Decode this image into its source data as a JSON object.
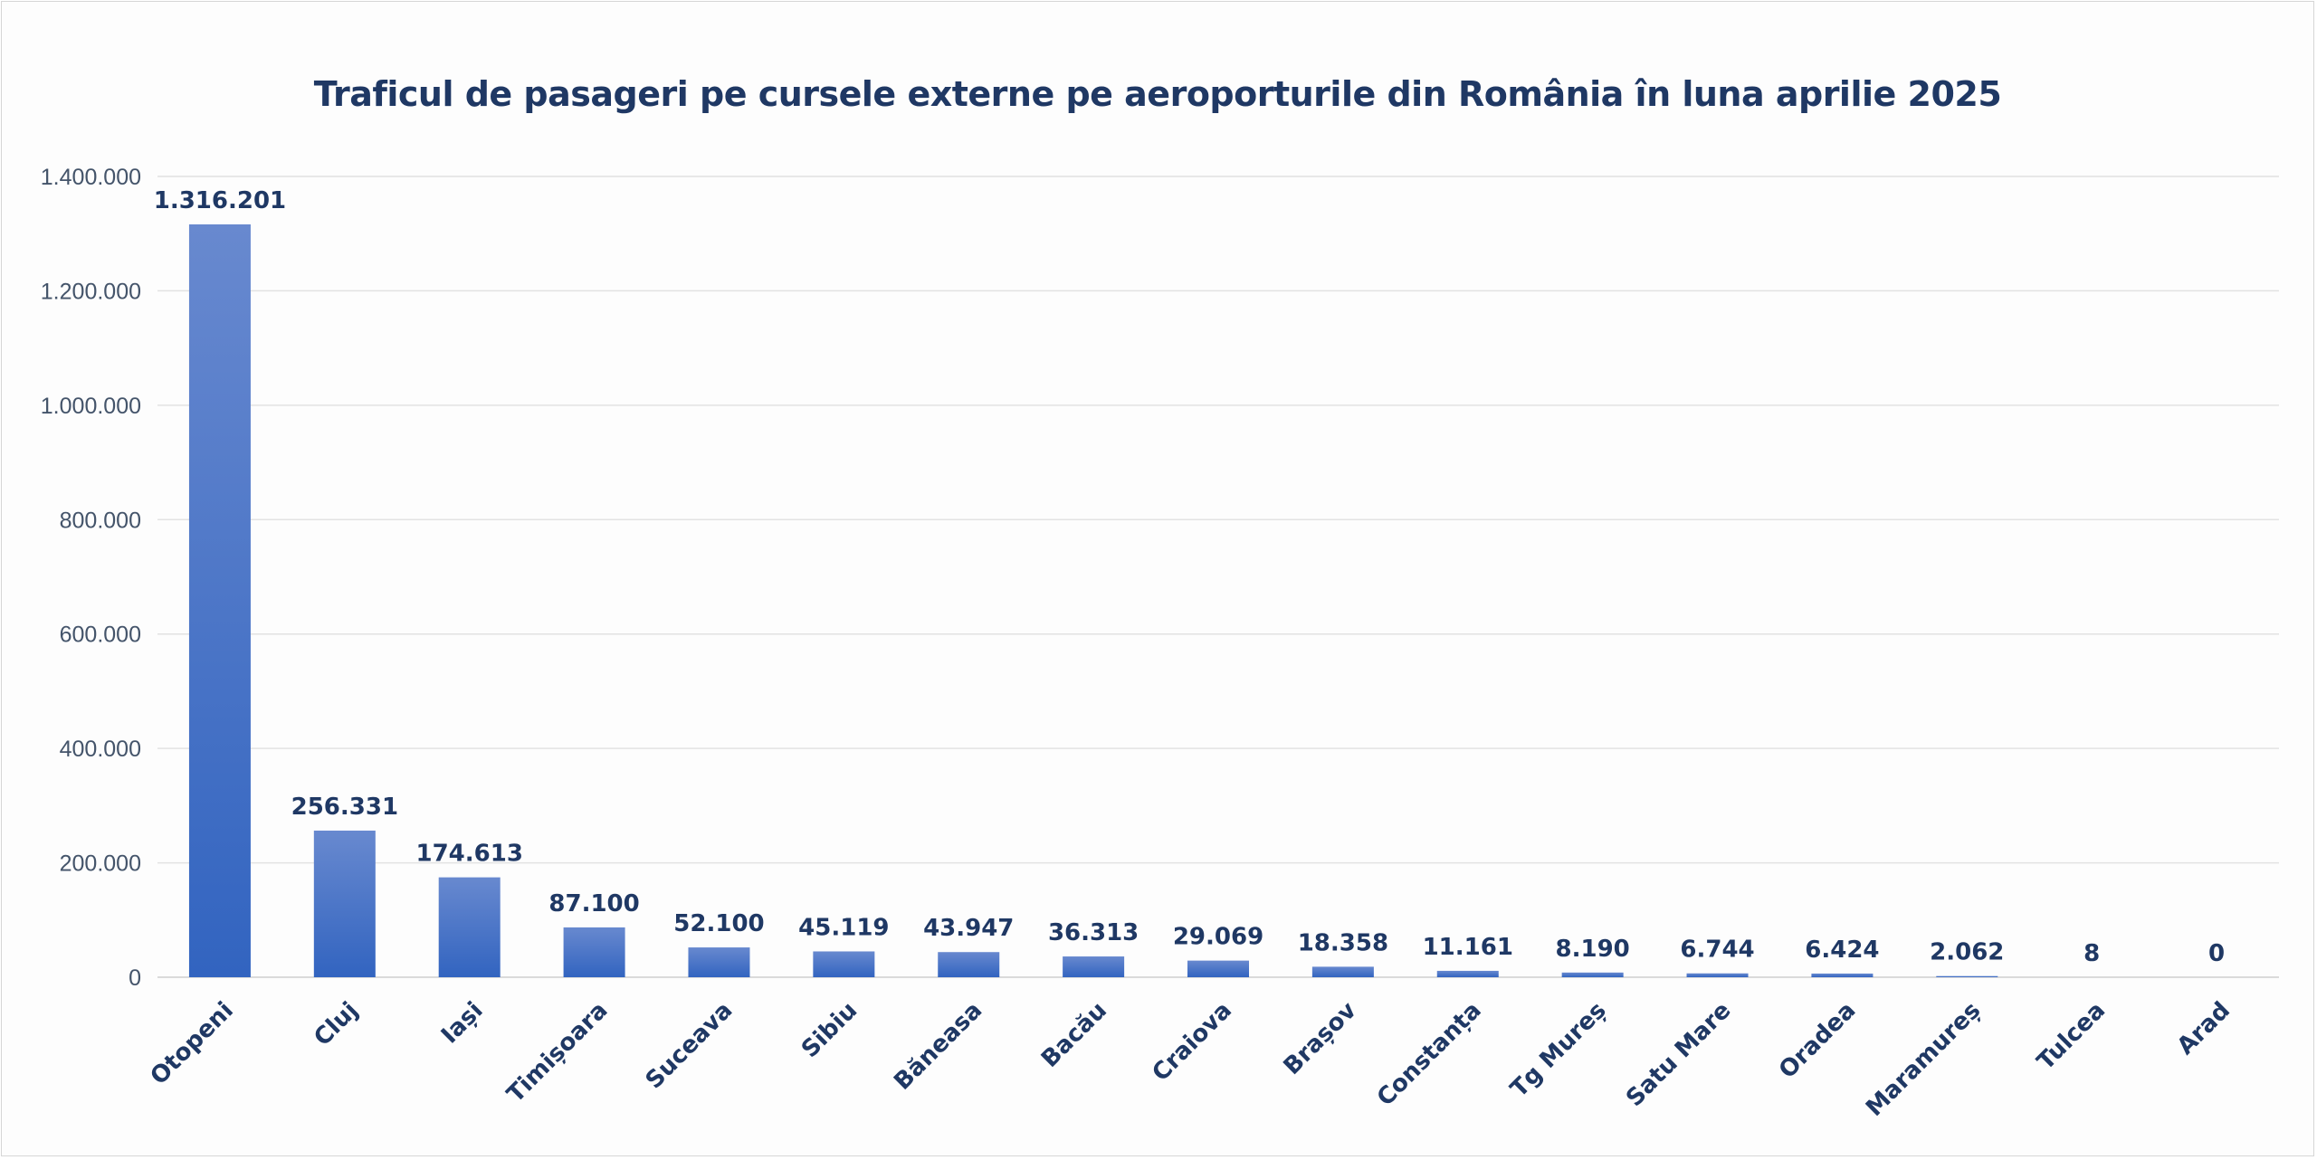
{
  "chart_data": {
    "type": "bar",
    "title": "Traficul de pasageri pe cursele externe pe aeroporturile din România în luna aprilie 2025",
    "xlabel": "",
    "ylabel": "",
    "categories": [
      "Otopeni",
      "Cluj",
      "Iași",
      "Timișoara",
      "Suceava",
      "Sibiu",
      "Băneasa",
      "Bacău",
      "Craiova",
      "Brașov",
      "Constanța",
      "Tg Mureș",
      "Satu Mare",
      "Oradea",
      "Maramureș",
      "Tulcea",
      "Arad"
    ],
    "values": [
      1316201,
      256331,
      174613,
      87100,
      52100,
      45119,
      43947,
      36313,
      29069,
      18358,
      11161,
      8190,
      6744,
      6424,
      2062,
      8,
      0
    ],
    "data_labels": [
      "1.316.201",
      "256.331",
      "174.613",
      "87.100",
      "52.100",
      "45.119",
      "43.947",
      "36.313",
      "29.069",
      "18.358",
      "11.161",
      "8.190",
      "6.744",
      "6.424",
      "2.062",
      "8",
      "0"
    ],
    "ylim": [
      0,
      1400000
    ],
    "yticks": [
      0,
      200000,
      400000,
      600000,
      800000,
      1000000,
      1200000,
      1400000
    ],
    "ytick_labels": [
      "0",
      "200.000",
      "400.000",
      "600.000",
      "800.000",
      "1.000.000",
      "1.200.000",
      "1.400.000"
    ],
    "grid": true,
    "legend": "none",
    "colors": {
      "bar_top": "#6889cf",
      "bar_bottom": "#3264c0",
      "text": "#1f3864",
      "axis_text": "#44546a",
      "grid": "#e2e2e2"
    }
  }
}
